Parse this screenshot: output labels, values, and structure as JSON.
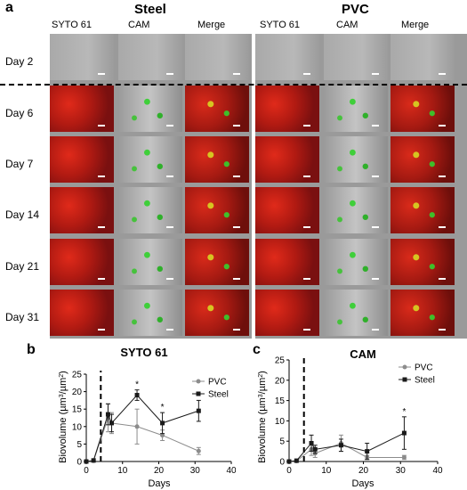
{
  "figure": {
    "panel_a": "a",
    "panel_b": "b",
    "panel_c": "c",
    "groups": [
      "Steel",
      "PVC"
    ],
    "columns": [
      "SYTO 61",
      "CAM",
      "Merge"
    ],
    "rows": [
      "Day 2",
      "Day 6",
      "Day 7",
      "Day 14",
      "Day 21",
      "Day 31"
    ]
  },
  "chart_data": [
    {
      "type": "line",
      "title": "SYTO 61",
      "xlabel": "Days",
      "ylabel": "Biovolume (µm³/µm²)",
      "xlim": [
        0,
        40
      ],
      "ylim": [
        0,
        25
      ],
      "xticks": [
        "0",
        "10",
        "20",
        "30",
        "40"
      ],
      "yticks": [
        "0",
        "5",
        "10",
        "15",
        "20",
        "25"
      ],
      "dashed_line_x": 4,
      "legend_position": "top-right",
      "series": [
        {
          "name": "PVC",
          "color": "#8c8c8c",
          "marker": "circle",
          "x": [
            0,
            2,
            6,
            7,
            14,
            21,
            31
          ],
          "y": [
            0,
            0.2,
            12.5,
            11,
            10,
            7.5,
            3
          ],
          "err": [
            0,
            0,
            4,
            3,
            5,
            1.5,
            1
          ]
        },
        {
          "name": "Steel",
          "color": "#1a1a1a",
          "marker": "square",
          "x": [
            0,
            2,
            6,
            7,
            14,
            21,
            31
          ],
          "y": [
            0,
            0.3,
            13.5,
            11,
            19,
            11,
            14.5
          ],
          "err": [
            0,
            0,
            3,
            2.5,
            1.5,
            3,
            3
          ]
        }
      ],
      "annotations": [
        {
          "x": 14,
          "text": "*"
        },
        {
          "x": 21,
          "text": "*"
        },
        {
          "x": 31,
          "text": "*"
        }
      ]
    },
    {
      "type": "line",
      "title": "CAM",
      "xlabel": "Days",
      "ylabel": "Biovolume (µm³/µm²)",
      "xlim": [
        0,
        40
      ],
      "ylim": [
        0,
        25
      ],
      "xticks": [
        "0",
        "10",
        "20",
        "30",
        "40"
      ],
      "yticks": [
        "0",
        "5",
        "10",
        "15",
        "20",
        "25"
      ],
      "dashed_line_x": 4,
      "legend_position": "top-right",
      "series": [
        {
          "name": "PVC",
          "color": "#8c8c8c",
          "marker": "circle",
          "x": [
            0,
            2,
            6,
            7,
            14,
            21,
            31
          ],
          "y": [
            0,
            0.1,
            3,
            2,
            4.5,
            1,
            1
          ],
          "err": [
            0,
            0,
            1.5,
            1,
            2,
            0.5,
            0.5
          ]
        },
        {
          "name": "Steel",
          "color": "#1a1a1a",
          "marker": "square",
          "x": [
            0,
            2,
            6,
            7,
            14,
            21,
            31
          ],
          "y": [
            0,
            0.2,
            4.5,
            3,
            4,
            2.5,
            7
          ],
          "err": [
            0,
            0,
            2,
            1,
            1.5,
            2,
            4
          ]
        }
      ],
      "annotations": [
        {
          "x": 31,
          "text": "*"
        }
      ]
    }
  ]
}
